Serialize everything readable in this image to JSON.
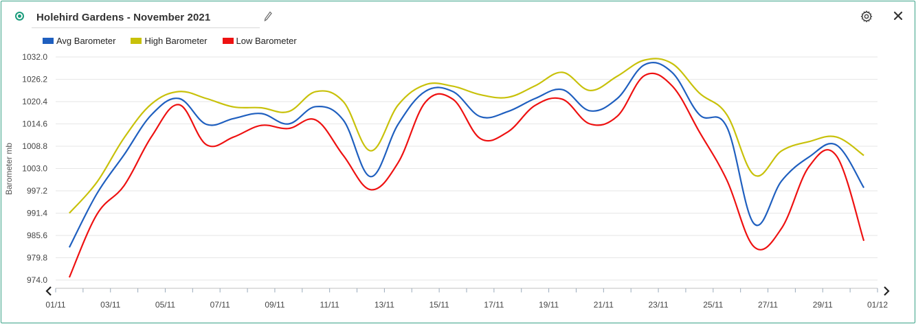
{
  "header": {
    "title": "Holehird Gardens - November 2021",
    "icons": [
      "status-dot",
      "pencil-icon",
      "gear-icon",
      "close-icon"
    ]
  },
  "colors": {
    "accent": "#1b9c7c",
    "avg": "#1f5fbf",
    "high": "#c8c10a",
    "low": "#ee1111"
  },
  "chart_data": {
    "type": "line",
    "ylabel": "Barometer mb",
    "ylim": [
      974.0,
      1032.0
    ],
    "yticks": [
      "1032.0",
      "1026.2",
      "1020.4",
      "1014.6",
      "1008.8",
      "1003.0",
      "997.2",
      "991.4",
      "985.6",
      "979.8",
      "974.0"
    ],
    "xticks": [
      "01/11",
      "03/11",
      "05/11",
      "07/11",
      "09/11",
      "11/11",
      "13/11",
      "15/11",
      "17/11",
      "19/11",
      "21/11",
      "23/11",
      "25/11",
      "27/11",
      "29/11",
      "01/12"
    ],
    "x": [
      1.5,
      2.5,
      3.5,
      4.5,
      5.5,
      6.5,
      7.5,
      8.5,
      9.5,
      10.5,
      11.5,
      12.5,
      13.5,
      14.5,
      15.5,
      16.5,
      17.5,
      18.5,
      19.5,
      20.5,
      21.5,
      22.5,
      23.5,
      24.5,
      25.5,
      26.5,
      27.5,
      28.5,
      29.5,
      30.5
    ],
    "series": [
      {
        "name": "Avg Barometer",
        "color": "#1f5fbf",
        "values": [
          982.5,
          996.4,
          1006.6,
          1017.0,
          1021.2,
          1014.5,
          1016.0,
          1017.3,
          1014.6,
          1019.1,
          1015.6,
          1000.9,
          1014.5,
          1023.1,
          1023.0,
          1016.5,
          1017.8,
          1021.2,
          1023.5,
          1018.0,
          1021.2,
          1030.0,
          1028.0,
          1017.0,
          1013.8,
          988.6,
          999.8,
          1006.0,
          1009.1,
          998.0
        ]
      },
      {
        "name": "High Barometer",
        "color": "#c8c10a",
        "values": [
          991.4,
          999.4,
          1011.0,
          1019.8,
          1023.0,
          1021.2,
          1019.0,
          1018.8,
          1017.8,
          1023.0,
          1020.4,
          1007.6,
          1019.5,
          1024.8,
          1024.4,
          1022.2,
          1021.5,
          1024.5,
          1028.0,
          1023.3,
          1027.0,
          1031.2,
          1030.3,
          1022.6,
          1017.0,
          1001.3,
          1007.6,
          1010.0,
          1011.2,
          1006.4
        ]
      },
      {
        "name": "Low Barometer",
        "color": "#ee1111",
        "values": [
          974.7,
          991.0,
          998.6,
          1011.3,
          1019.6,
          1009.2,
          1011.2,
          1014.2,
          1013.4,
          1015.6,
          1006.4,
          997.5,
          1004.5,
          1020.3,
          1021.0,
          1010.8,
          1012.5,
          1019.4,
          1021.0,
          1014.6,
          1016.6,
          1027.2,
          1024.5,
          1012.5,
          1000.0,
          982.6,
          987.5,
          1003.5,
          1006.3,
          984.2
        ]
      }
    ]
  }
}
